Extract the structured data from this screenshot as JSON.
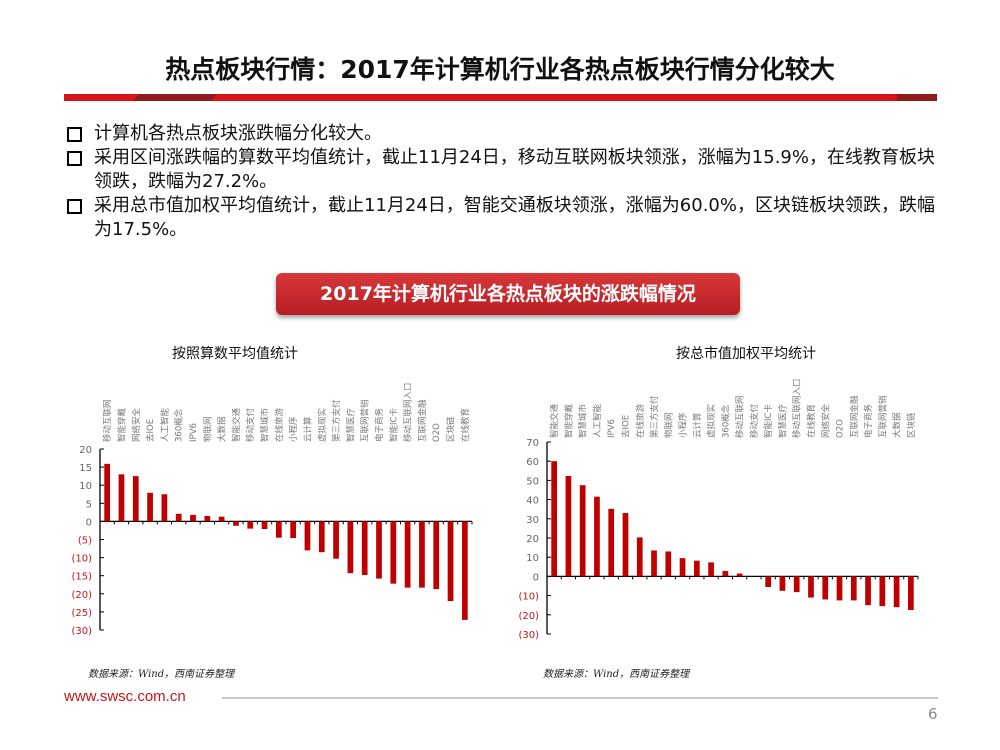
{
  "slide": {
    "title": "热点板块行情：2017年计算机行业各热点板块行情分化较大",
    "bullets": [
      "计算机各热点板块涨跌幅分化较大。",
      "采用区间涨跌幅的算数平均值统计，截止11月24日，移动互联网板块领涨，涨幅为15.9%，在线教育板块领跌，跌幅为27.2%。",
      "采用总市值加权平均值统计，截止11月24日，智能交通板块领涨，涨幅为60.0%，区块链板块领跌，跌幅为17.5%。"
    ],
    "banner": "2017年计算机行业各热点板块的涨跌幅情况",
    "footer": {
      "url": "www.swsc.com.cn",
      "page": "6"
    },
    "colors": {
      "accent": "#d9131a",
      "bar": "#c00000",
      "negative_tick": "#c0161d"
    }
  },
  "chart_data": [
    {
      "type": "bar",
      "title": "按照算数平均值统计",
      "source": "数据来源：Wind，西南证券整理",
      "xlabel": "",
      "ylabel": "",
      "ylim": [
        -30,
        20
      ],
      "yticks": [
        20,
        15,
        10,
        5,
        0,
        -5,
        -10,
        -15,
        -20,
        -25,
        -30
      ],
      "ytick_labels": [
        "20",
        "15",
        "10",
        "5",
        "0",
        "(5)",
        "(10)",
        "(15)",
        "(20)",
        "(25)",
        "(30)"
      ],
      "grid": false,
      "categories": [
        "移动互联网",
        "智能穿戴",
        "网络安全",
        "去IOE",
        "人工智能",
        "360概念",
        "IPV6",
        "物联网",
        "大数据",
        "智能交通",
        "移动支付",
        "智慧城市",
        "在线旅游",
        "小程序",
        "云计算",
        "虚拟现实",
        "第三方支付",
        "智慧医疗",
        "互联网营销",
        "电子商务",
        "智能IC卡",
        "移动互联网入口",
        "互联网金融",
        "O2O",
        "区块链",
        "在线教育"
      ],
      "values": [
        15.9,
        13.0,
        12.5,
        7.9,
        7.5,
        2.1,
        1.8,
        1.5,
        1.3,
        -1.2,
        -2.0,
        -2.1,
        -4.5,
        -4.6,
        -8.0,
        -8.5,
        -10.3,
        -14.3,
        -14.8,
        -15.8,
        -17.2,
        -18.3,
        -18.3,
        -18.7,
        -22.0,
        -27.2
      ]
    },
    {
      "type": "bar",
      "title": "按总市值加权平均统计",
      "source": "数据来源：Wind，西南证券整理",
      "xlabel": "",
      "ylabel": "",
      "ylim": [
        -30,
        70
      ],
      "yticks": [
        70,
        60,
        50,
        40,
        30,
        20,
        10,
        0,
        -10,
        -20,
        -30
      ],
      "ytick_labels": [
        "70",
        "60",
        "50",
        "40",
        "30",
        "20",
        "10",
        "0",
        "(10)",
        "(20)",
        "(30)"
      ],
      "grid": false,
      "categories": [
        "智能交通",
        "智能穿戴",
        "智慧城市",
        "人工智能",
        "IPV6",
        "去IOE",
        "在线旅游",
        "第三方支付",
        "物联网",
        "小程序",
        "云计算",
        "虚拟现实",
        "360概念",
        "移动互联网",
        "移动支付",
        "智能IC卡",
        "智慧医疗",
        "移动互联网入口",
        "在线教育",
        "网络安全",
        "O2O",
        "互联网金融",
        "电子商务",
        "互联网营销",
        "大数据",
        "区块链"
      ],
      "values": [
        60.0,
        52.3,
        47.5,
        41.5,
        35.2,
        33.0,
        20.3,
        13.5,
        13.0,
        9.5,
        8.2,
        7.3,
        2.8,
        1.5,
        0.0,
        -5.5,
        -7.5,
        -8.2,
        -11.0,
        -12.0,
        -12.5,
        -12.5,
        -15.0,
        -15.5,
        -16.0,
        -17.5
      ]
    }
  ]
}
